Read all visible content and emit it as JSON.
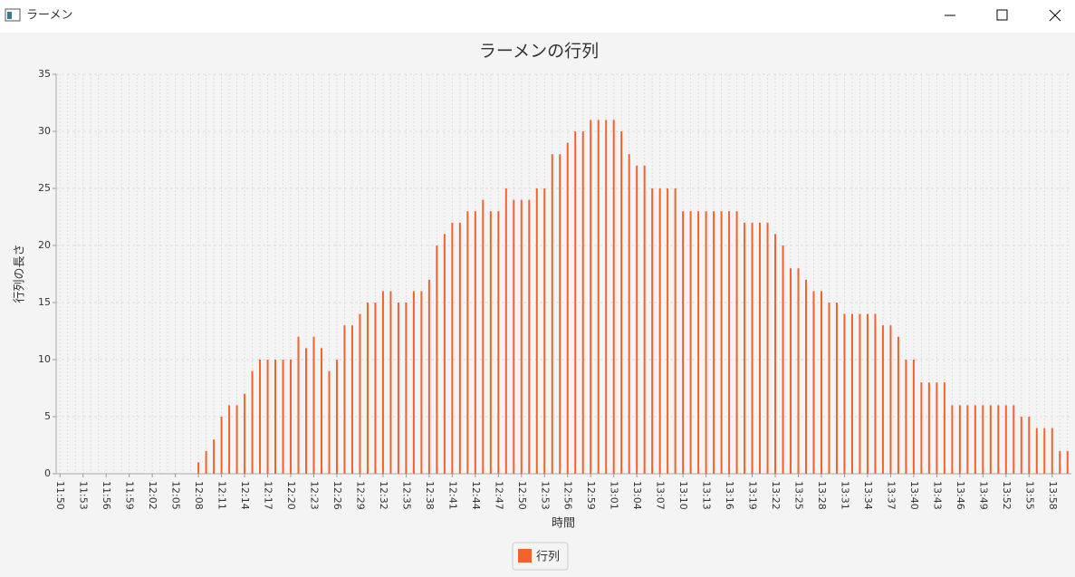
{
  "window": {
    "title": "ラーメン"
  },
  "chart_data": {
    "type": "bar",
    "title": "ラーメンの行列",
    "x_label": "時間",
    "y_label": "行列の長さ",
    "categories": [
      "11:50",
      null,
      null,
      "11:53",
      null,
      null,
      "11:56",
      null,
      null,
      "11:59",
      null,
      null,
      "12:02",
      null,
      null,
      "12:05",
      null,
      null,
      "12:08",
      null,
      null,
      "12:11",
      null,
      null,
      "12:14",
      null,
      null,
      "12:17",
      null,
      null,
      "12:20",
      null,
      null,
      "12:23",
      null,
      null,
      "12:26",
      null,
      null,
      "12:29",
      null,
      null,
      "12:32",
      null,
      null,
      "12:35",
      null,
      null,
      "12:38",
      null,
      null,
      "12:41",
      null,
      null,
      "12:44",
      null,
      null,
      "12:47",
      null,
      null,
      "12:50",
      null,
      null,
      "12:53",
      null,
      null,
      "12:56",
      null,
      null,
      "12:59",
      null,
      null,
      "13:01",
      null,
      null,
      "13:04",
      null,
      null,
      "13:07",
      null,
      null,
      "13:10",
      null,
      null,
      "13:13",
      null,
      null,
      "13:16",
      null,
      null,
      "13:19",
      null,
      null,
      "13:22",
      null,
      null,
      "13:25",
      null,
      null,
      "13:28",
      null,
      null,
      "13:31",
      null,
      null,
      "13:34",
      null,
      null,
      "13:37",
      null,
      null,
      "13:40",
      null,
      null,
      "13:43",
      null,
      null,
      "13:46",
      null,
      null,
      "13:49",
      null,
      null,
      "13:52",
      null,
      null,
      "13:55",
      null,
      null,
      "13:58",
      null,
      null
    ],
    "series": [
      {
        "name": "行列",
        "color": "#f3622d",
        "values": [
          0,
          0,
          0,
          0,
          0,
          0,
          0,
          0,
          0,
          0,
          0,
          0,
          0,
          0,
          0,
          0,
          0,
          0,
          1,
          2,
          3,
          5,
          6,
          6,
          7,
          9,
          10,
          10,
          10,
          10,
          10,
          12,
          11,
          12,
          11,
          9,
          10,
          13,
          13,
          14,
          15,
          15,
          16,
          16,
          15,
          15,
          16,
          16,
          17,
          20,
          21,
          22,
          22,
          23,
          23,
          24,
          23,
          23,
          25,
          24,
          24,
          24,
          25,
          25,
          28,
          28,
          29,
          30,
          30,
          31,
          31,
          31,
          31,
          30,
          28,
          27,
          27,
          25,
          25,
          25,
          25,
          23,
          23,
          23,
          23,
          23,
          23,
          23,
          23,
          22,
          22,
          22,
          22,
          21,
          20,
          18,
          18,
          17,
          16,
          16,
          15,
          15,
          14,
          14,
          14,
          14,
          14,
          13,
          13,
          12,
          10,
          10,
          8,
          8,
          8,
          8,
          6,
          6,
          6,
          6,
          6,
          6,
          6,
          6,
          6,
          5,
          5,
          4,
          4,
          4,
          2,
          2
        ]
      }
    ],
    "ylim": [
      0,
      35
    ],
    "yticks": [
      0,
      5,
      10,
      15,
      20,
      25,
      30,
      35
    ],
    "grid": true,
    "legend": "bottom"
  }
}
